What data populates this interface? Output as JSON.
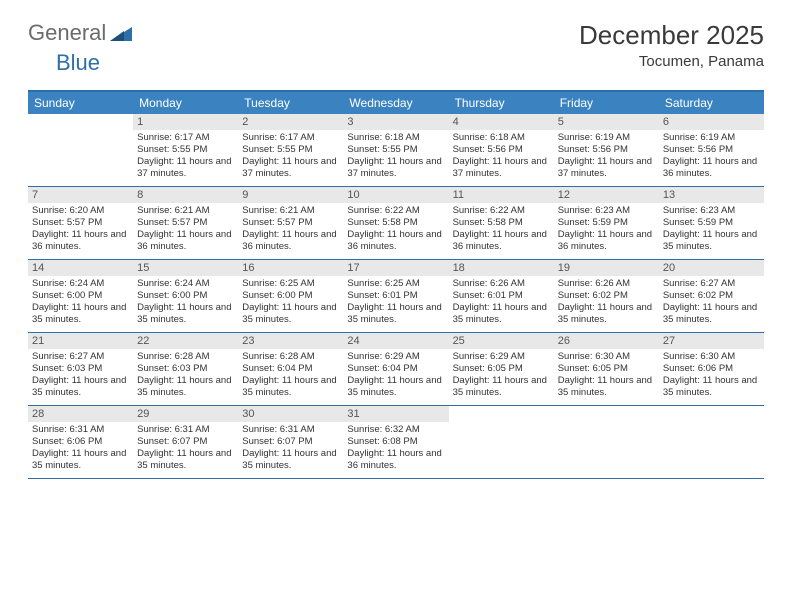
{
  "logo": {
    "gray": "General",
    "blue": "Blue"
  },
  "title": "December 2025",
  "location": "Tocumen, Panama",
  "colors": {
    "header_bg": "#3b83c0",
    "border": "#2f6fa8",
    "daynum_bg": "#e8e8e8",
    "text": "#333333",
    "logo_gray": "#6b6b6b",
    "logo_blue": "#2f6fa8"
  },
  "weekdays": [
    "Sunday",
    "Monday",
    "Tuesday",
    "Wednesday",
    "Thursday",
    "Friday",
    "Saturday"
  ],
  "days": [
    {
      "n": "",
      "sr": "",
      "ss": "",
      "dl": ""
    },
    {
      "n": "1",
      "sr": "Sunrise: 6:17 AM",
      "ss": "Sunset: 5:55 PM",
      "dl": "Daylight: 11 hours and 37 minutes."
    },
    {
      "n": "2",
      "sr": "Sunrise: 6:17 AM",
      "ss": "Sunset: 5:55 PM",
      "dl": "Daylight: 11 hours and 37 minutes."
    },
    {
      "n": "3",
      "sr": "Sunrise: 6:18 AM",
      "ss": "Sunset: 5:55 PM",
      "dl": "Daylight: 11 hours and 37 minutes."
    },
    {
      "n": "4",
      "sr": "Sunrise: 6:18 AM",
      "ss": "Sunset: 5:56 PM",
      "dl": "Daylight: 11 hours and 37 minutes."
    },
    {
      "n": "5",
      "sr": "Sunrise: 6:19 AM",
      "ss": "Sunset: 5:56 PM",
      "dl": "Daylight: 11 hours and 37 minutes."
    },
    {
      "n": "6",
      "sr": "Sunrise: 6:19 AM",
      "ss": "Sunset: 5:56 PM",
      "dl": "Daylight: 11 hours and 36 minutes."
    },
    {
      "n": "7",
      "sr": "Sunrise: 6:20 AM",
      "ss": "Sunset: 5:57 PM",
      "dl": "Daylight: 11 hours and 36 minutes."
    },
    {
      "n": "8",
      "sr": "Sunrise: 6:21 AM",
      "ss": "Sunset: 5:57 PM",
      "dl": "Daylight: 11 hours and 36 minutes."
    },
    {
      "n": "9",
      "sr": "Sunrise: 6:21 AM",
      "ss": "Sunset: 5:57 PM",
      "dl": "Daylight: 11 hours and 36 minutes."
    },
    {
      "n": "10",
      "sr": "Sunrise: 6:22 AM",
      "ss": "Sunset: 5:58 PM",
      "dl": "Daylight: 11 hours and 36 minutes."
    },
    {
      "n": "11",
      "sr": "Sunrise: 6:22 AM",
      "ss": "Sunset: 5:58 PM",
      "dl": "Daylight: 11 hours and 36 minutes."
    },
    {
      "n": "12",
      "sr": "Sunrise: 6:23 AM",
      "ss": "Sunset: 5:59 PM",
      "dl": "Daylight: 11 hours and 36 minutes."
    },
    {
      "n": "13",
      "sr": "Sunrise: 6:23 AM",
      "ss": "Sunset: 5:59 PM",
      "dl": "Daylight: 11 hours and 35 minutes."
    },
    {
      "n": "14",
      "sr": "Sunrise: 6:24 AM",
      "ss": "Sunset: 6:00 PM",
      "dl": "Daylight: 11 hours and 35 minutes."
    },
    {
      "n": "15",
      "sr": "Sunrise: 6:24 AM",
      "ss": "Sunset: 6:00 PM",
      "dl": "Daylight: 11 hours and 35 minutes."
    },
    {
      "n": "16",
      "sr": "Sunrise: 6:25 AM",
      "ss": "Sunset: 6:00 PM",
      "dl": "Daylight: 11 hours and 35 minutes."
    },
    {
      "n": "17",
      "sr": "Sunrise: 6:25 AM",
      "ss": "Sunset: 6:01 PM",
      "dl": "Daylight: 11 hours and 35 minutes."
    },
    {
      "n": "18",
      "sr": "Sunrise: 6:26 AM",
      "ss": "Sunset: 6:01 PM",
      "dl": "Daylight: 11 hours and 35 minutes."
    },
    {
      "n": "19",
      "sr": "Sunrise: 6:26 AM",
      "ss": "Sunset: 6:02 PM",
      "dl": "Daylight: 11 hours and 35 minutes."
    },
    {
      "n": "20",
      "sr": "Sunrise: 6:27 AM",
      "ss": "Sunset: 6:02 PM",
      "dl": "Daylight: 11 hours and 35 minutes."
    },
    {
      "n": "21",
      "sr": "Sunrise: 6:27 AM",
      "ss": "Sunset: 6:03 PM",
      "dl": "Daylight: 11 hours and 35 minutes."
    },
    {
      "n": "22",
      "sr": "Sunrise: 6:28 AM",
      "ss": "Sunset: 6:03 PM",
      "dl": "Daylight: 11 hours and 35 minutes."
    },
    {
      "n": "23",
      "sr": "Sunrise: 6:28 AM",
      "ss": "Sunset: 6:04 PM",
      "dl": "Daylight: 11 hours and 35 minutes."
    },
    {
      "n": "24",
      "sr": "Sunrise: 6:29 AM",
      "ss": "Sunset: 6:04 PM",
      "dl": "Daylight: 11 hours and 35 minutes."
    },
    {
      "n": "25",
      "sr": "Sunrise: 6:29 AM",
      "ss": "Sunset: 6:05 PM",
      "dl": "Daylight: 11 hours and 35 minutes."
    },
    {
      "n": "26",
      "sr": "Sunrise: 6:30 AM",
      "ss": "Sunset: 6:05 PM",
      "dl": "Daylight: 11 hours and 35 minutes."
    },
    {
      "n": "27",
      "sr": "Sunrise: 6:30 AM",
      "ss": "Sunset: 6:06 PM",
      "dl": "Daylight: 11 hours and 35 minutes."
    },
    {
      "n": "28",
      "sr": "Sunrise: 6:31 AM",
      "ss": "Sunset: 6:06 PM",
      "dl": "Daylight: 11 hours and 35 minutes."
    },
    {
      "n": "29",
      "sr": "Sunrise: 6:31 AM",
      "ss": "Sunset: 6:07 PM",
      "dl": "Daylight: 11 hours and 35 minutes."
    },
    {
      "n": "30",
      "sr": "Sunrise: 6:31 AM",
      "ss": "Sunset: 6:07 PM",
      "dl": "Daylight: 11 hours and 35 minutes."
    },
    {
      "n": "31",
      "sr": "Sunrise: 6:32 AM",
      "ss": "Sunset: 6:08 PM",
      "dl": "Daylight: 11 hours and 36 minutes."
    },
    {
      "n": "",
      "sr": "",
      "ss": "",
      "dl": ""
    },
    {
      "n": "",
      "sr": "",
      "ss": "",
      "dl": ""
    },
    {
      "n": "",
      "sr": "",
      "ss": "",
      "dl": ""
    }
  ]
}
